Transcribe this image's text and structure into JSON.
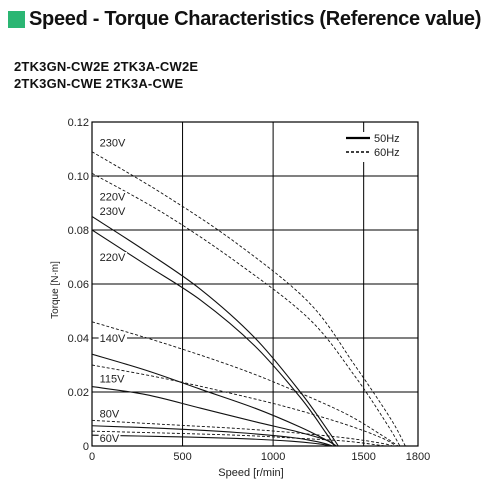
{
  "page": {
    "title": "Speed - Torque Characteristics (Reference value)",
    "models": [
      "2TK3GN-CW2E 2TK3A-CW2E",
      "2TK3GN-CWE 2TK3A-CWE"
    ],
    "marker_color": "#2bb673"
  },
  "chart_data": {
    "type": "line",
    "title": "",
    "xlabel": "Speed [r/min]",
    "ylabel": "Torque [N·m]",
    "xlim": [
      0,
      1800
    ],
    "ylim": [
      0,
      0.12
    ],
    "x_ticks": [
      0,
      500,
      1000,
      1500,
      1800
    ],
    "x_tick_labels": [
      "0",
      "500",
      "1000",
      "1500",
      "1800"
    ],
    "y_ticks": [
      0,
      0.02,
      0.04,
      0.06,
      0.08,
      0.1,
      0.12
    ],
    "y_tick_labels": [
      "0",
      "0.02",
      "0.04",
      "0.06",
      "0.08",
      "0.10",
      "0.12"
    ],
    "grid": true,
    "legend_position": "top-right",
    "legend": [
      {
        "label": "50Hz",
        "style": "solid"
      },
      {
        "label": "60Hz",
        "style": "dashed"
      }
    ],
    "series": [
      {
        "name": "230V",
        "frequency": "60Hz",
        "style": "dashed",
        "points": [
          [
            0,
            0.109
          ],
          [
            400,
            0.093
          ],
          [
            800,
            0.075
          ],
          [
            1200,
            0.053
          ],
          [
            1450,
            0.03
          ],
          [
            1650,
            0.01
          ],
          [
            1730,
            0
          ]
        ]
      },
      {
        "name": "220V",
        "frequency": "60Hz",
        "style": "dashed",
        "points": [
          [
            0,
            0.101
          ],
          [
            400,
            0.086
          ],
          [
            800,
            0.068
          ],
          [
            1200,
            0.047
          ],
          [
            1450,
            0.026
          ],
          [
            1630,
            0.008
          ],
          [
            1700,
            0
          ]
        ]
      },
      {
        "name": "230V",
        "frequency": "50Hz",
        "style": "solid",
        "points": [
          [
            0,
            0.085
          ],
          [
            300,
            0.072
          ],
          [
            600,
            0.058
          ],
          [
            900,
            0.04
          ],
          [
            1150,
            0.02
          ],
          [
            1300,
            0.006
          ],
          [
            1360,
            0
          ]
        ]
      },
      {
        "name": "220V",
        "frequency": "50Hz",
        "style": "solid",
        "points": [
          [
            0,
            0.08
          ],
          [
            300,
            0.067
          ],
          [
            600,
            0.054
          ],
          [
            900,
            0.037
          ],
          [
            1150,
            0.018
          ],
          [
            1290,
            0.005
          ],
          [
            1340,
            0
          ]
        ]
      },
      {
        "name": "140V",
        "frequency": "60Hz",
        "style": "dashed",
        "points": [
          [
            0,
            0.046
          ],
          [
            400,
            0.038
          ],
          [
            800,
            0.029
          ],
          [
            1100,
            0.021
          ],
          [
            1400,
            0.012
          ],
          [
            1600,
            0.004
          ],
          [
            1690,
            0
          ]
        ]
      },
      {
        "name": "140V",
        "frequency": "50Hz",
        "style": "solid",
        "points": [
          [
            0,
            0.034
          ],
          [
            300,
            0.028
          ],
          [
            600,
            0.021
          ],
          [
            900,
            0.014
          ],
          [
            1150,
            0.007
          ],
          [
            1300,
            0.002
          ],
          [
            1350,
            0
          ]
        ]
      },
      {
        "name": "115V",
        "frequency": "60Hz",
        "style": "dashed",
        "points": [
          [
            0,
            0.03
          ],
          [
            400,
            0.025
          ],
          [
            800,
            0.019
          ],
          [
            1100,
            0.014
          ],
          [
            1400,
            0.008
          ],
          [
            1600,
            0.003
          ],
          [
            1680,
            0
          ]
        ]
      },
      {
        "name": "115V",
        "frequency": "50Hz",
        "style": "solid",
        "points": [
          [
            0,
            0.022
          ],
          [
            300,
            0.019
          ],
          [
            600,
            0.014
          ],
          [
            900,
            0.009
          ],
          [
            1150,
            0.005
          ],
          [
            1300,
            0.002
          ],
          [
            1340,
            0
          ]
        ]
      },
      {
        "name": "80V",
        "frequency": "60Hz",
        "style": "dashed",
        "points": [
          [
            0,
            0.0095
          ],
          [
            400,
            0.008
          ],
          [
            800,
            0.0065
          ],
          [
            1100,
            0.005
          ],
          [
            1400,
            0.003
          ],
          [
            1600,
            0.001
          ],
          [
            1660,
            0
          ]
        ]
      },
      {
        "name": "80V",
        "frequency": "50Hz",
        "style": "solid",
        "points": [
          [
            0,
            0.0075
          ],
          [
            400,
            0.0065
          ],
          [
            800,
            0.005
          ],
          [
            1100,
            0.0032
          ],
          [
            1250,
            0.0015
          ],
          [
            1330,
            0
          ]
        ]
      },
      {
        "name": "60V",
        "frequency": "60Hz",
        "style": "dashed",
        "points": [
          [
            0,
            0.0055
          ],
          [
            400,
            0.0048
          ],
          [
            800,
            0.004
          ],
          [
            1100,
            0.003
          ],
          [
            1400,
            0.0018
          ],
          [
            1620,
            0
          ]
        ]
      },
      {
        "name": "60V",
        "frequency": "50Hz",
        "style": "solid",
        "points": [
          [
            0,
            0.004
          ],
          [
            400,
            0.0035
          ],
          [
            800,
            0.0028
          ],
          [
            1100,
            0.0018
          ],
          [
            1250,
            0.0008
          ],
          [
            1320,
            0
          ]
        ]
      }
    ],
    "curve_labels": [
      {
        "text": "230V",
        "x": 20,
        "y": 0.111
      },
      {
        "text": "220V",
        "x": 20,
        "y": 0.091
      },
      {
        "text": "230V",
        "x": 20,
        "y": 0.0855
      },
      {
        "text": "220V",
        "x": 20,
        "y": 0.0685
      },
      {
        "text": "140V",
        "x": 20,
        "y": 0.0385
      },
      {
        "text": "115V",
        "x": 20,
        "y": 0.0235
      },
      {
        "text": "80V",
        "x": 20,
        "y": 0.0105
      },
      {
        "text": "60V",
        "x": 20,
        "y": 0.0015
      }
    ]
  }
}
